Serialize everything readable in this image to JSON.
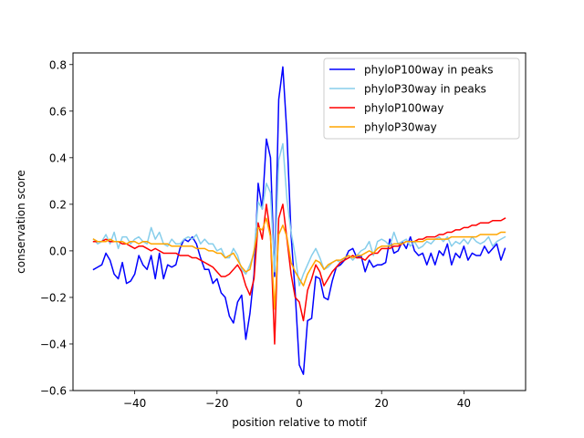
{
  "chart_data": {
    "type": "line",
    "title": "",
    "xlabel": "position relative to motif",
    "ylabel": "conservation score",
    "xlim": [
      -55.0,
      55.0
    ],
    "ylim": [
      -0.6,
      0.85
    ],
    "xticks": [
      -40,
      -20,
      0,
      20,
      40
    ],
    "xtick_labels": [
      "−40",
      "−20",
      "0",
      "20",
      "40"
    ],
    "yticks": [
      -0.6,
      -0.4,
      -0.2,
      0.0,
      0.2,
      0.4,
      0.6,
      0.8
    ],
    "ytick_labels": [
      "−0.6",
      "−0.4",
      "−0.2",
      "0.0",
      "0.2",
      "0.4",
      "0.6",
      "0.8"
    ],
    "grid": false,
    "legend_position": "top-right",
    "x": [
      -50,
      -49,
      -48,
      -47,
      -46,
      -45,
      -44,
      -43,
      -42,
      -41,
      -40,
      -39,
      -38,
      -37,
      -36,
      -35,
      -34,
      -33,
      -32,
      -31,
      -30,
      -29,
      -28,
      -27,
      -26,
      -25,
      -24,
      -23,
      -22,
      -21,
      -20,
      -19,
      -18,
      -17,
      -16,
      -15,
      -14,
      -13,
      -12,
      -11,
      -10,
      -9,
      -8,
      -7,
      -6,
      -5,
      -4,
      -3,
      -2,
      -1,
      0,
      1,
      2,
      3,
      4,
      5,
      6,
      7,
      8,
      9,
      10,
      11,
      12,
      13,
      14,
      15,
      16,
      17,
      18,
      19,
      20,
      21,
      22,
      23,
      24,
      25,
      26,
      27,
      28,
      29,
      30,
      31,
      32,
      33,
      34,
      35,
      36,
      37,
      38,
      39,
      40,
      41,
      42,
      43,
      44,
      45,
      46,
      47,
      48,
      49,
      50
    ],
    "series": [
      {
        "name": "phyloP100way in peaks",
        "color": "#0000ff",
        "values": [
          -0.08,
          -0.07,
          -0.06,
          -0.01,
          -0.04,
          -0.1,
          -0.12,
          -0.05,
          -0.14,
          -0.13,
          -0.1,
          -0.02,
          -0.06,
          -0.08,
          -0.02,
          -0.12,
          -0.01,
          -0.12,
          -0.06,
          -0.07,
          -0.06,
          0.01,
          0.05,
          0.04,
          0.06,
          0.03,
          -0.03,
          -0.08,
          -0.08,
          -0.14,
          -0.12,
          -0.18,
          -0.2,
          -0.28,
          -0.31,
          -0.22,
          -0.19,
          -0.38,
          -0.27,
          -0.1,
          0.29,
          0.18,
          0.48,
          0.4,
          -0.11,
          0.65,
          0.79,
          0.5,
          0.07,
          -0.18,
          -0.49,
          -0.53,
          -0.3,
          -0.29,
          -0.11,
          -0.12,
          -0.2,
          -0.21,
          -0.13,
          -0.07,
          -0.06,
          -0.04,
          0.0,
          0.01,
          -0.03,
          -0.02,
          -0.09,
          -0.04,
          -0.07,
          -0.06,
          -0.06,
          -0.05,
          0.05,
          -0.01,
          0.0,
          0.04,
          0.01,
          0.06,
          0.0,
          -0.02,
          -0.01,
          -0.06,
          -0.01,
          -0.06,
          0.0,
          -0.02,
          0.03,
          -0.06,
          -0.01,
          -0.03,
          0.02,
          -0.04,
          -0.01,
          -0.02,
          -0.02,
          0.02,
          -0.01,
          0.01,
          0.03,
          -0.04,
          0.01
        ]
      },
      {
        "name": "phyloP30way in peaks",
        "color": "#87ceeb",
        "values": [
          0.05,
          0.03,
          0.04,
          0.07,
          0.03,
          0.08,
          0.01,
          0.06,
          0.06,
          0.03,
          0.05,
          0.06,
          0.04,
          0.03,
          0.1,
          0.05,
          0.08,
          0.03,
          0.02,
          0.05,
          0.03,
          0.03,
          0.05,
          0.06,
          0.05,
          0.07,
          0.03,
          0.05,
          0.03,
          0.03,
          0.0,
          0.01,
          -0.03,
          -0.03,
          0.01,
          -0.02,
          -0.08,
          -0.1,
          -0.06,
          -0.01,
          0.21,
          0.18,
          0.29,
          0.25,
          -0.09,
          0.39,
          0.46,
          0.22,
          0.08,
          -0.02,
          -0.15,
          -0.1,
          -0.06,
          -0.02,
          0.01,
          -0.03,
          -0.08,
          -0.07,
          -0.05,
          -0.04,
          -0.05,
          -0.03,
          -0.02,
          -0.04,
          -0.02,
          0.0,
          0.01,
          0.04,
          -0.02,
          0.04,
          0.05,
          0.04,
          0.02,
          0.08,
          0.03,
          0.04,
          0.05,
          0.02,
          0.04,
          0.01,
          0.02,
          0.04,
          0.03,
          0.05,
          0.06,
          0.04,
          0.06,
          0.02,
          0.04,
          0.03,
          0.05,
          0.03,
          0.06,
          0.04,
          0.03,
          0.04,
          0.06,
          0.02,
          0.04,
          0.05,
          0.06
        ]
      },
      {
        "name": "phyloP100way",
        "color": "#ff0000",
        "values": [
          0.04,
          0.04,
          0.04,
          0.05,
          0.04,
          0.04,
          0.04,
          0.03,
          0.03,
          0.02,
          0.01,
          0.02,
          0.02,
          0.01,
          0.0,
          0.01,
          0.0,
          -0.01,
          -0.01,
          -0.01,
          -0.01,
          -0.02,
          -0.02,
          -0.02,
          -0.03,
          -0.03,
          -0.04,
          -0.05,
          -0.06,
          -0.07,
          -0.09,
          -0.11,
          -0.11,
          -0.1,
          -0.08,
          -0.06,
          -0.09,
          -0.15,
          -0.19,
          -0.12,
          0.12,
          0.05,
          0.2,
          0.07,
          -0.4,
          0.14,
          0.2,
          0.05,
          -0.1,
          -0.2,
          -0.22,
          -0.3,
          -0.17,
          -0.12,
          -0.06,
          -0.09,
          -0.15,
          -0.12,
          -0.09,
          -0.07,
          -0.05,
          -0.04,
          -0.03,
          -0.02,
          -0.03,
          -0.03,
          -0.04,
          -0.02,
          -0.01,
          -0.01,
          0.01,
          0.01,
          0.01,
          0.02,
          0.02,
          0.03,
          0.04,
          0.04,
          0.04,
          0.05,
          0.05,
          0.06,
          0.06,
          0.06,
          0.07,
          0.07,
          0.08,
          0.08,
          0.09,
          0.09,
          0.1,
          0.1,
          0.11,
          0.11,
          0.12,
          0.12,
          0.12,
          0.13,
          0.13,
          0.13,
          0.14
        ]
      },
      {
        "name": "phyloP30way",
        "color": "#ffa500",
        "values": [
          0.05,
          0.04,
          0.04,
          0.04,
          0.05,
          0.04,
          0.04,
          0.04,
          0.03,
          0.04,
          0.04,
          0.03,
          0.04,
          0.04,
          0.03,
          0.03,
          0.03,
          0.03,
          0.03,
          0.02,
          0.02,
          0.02,
          0.02,
          0.02,
          0.02,
          0.01,
          0.01,
          0.01,
          0.0,
          0.0,
          -0.01,
          -0.01,
          -0.03,
          -0.02,
          -0.01,
          -0.04,
          -0.07,
          -0.09,
          -0.08,
          0.0,
          0.1,
          0.09,
          0.14,
          0.06,
          -0.25,
          0.07,
          0.11,
          0.06,
          -0.05,
          -0.09,
          -0.12,
          -0.15,
          -0.1,
          -0.07,
          -0.04,
          -0.05,
          -0.08,
          -0.06,
          -0.05,
          -0.04,
          -0.04,
          -0.03,
          -0.02,
          -0.03,
          -0.02,
          -0.02,
          -0.01,
          0.0,
          -0.01,
          0.01,
          0.02,
          0.02,
          0.02,
          0.03,
          0.03,
          0.03,
          0.04,
          0.04,
          0.04,
          0.04,
          0.04,
          0.05,
          0.05,
          0.05,
          0.05,
          0.05,
          0.05,
          0.06,
          0.06,
          0.06,
          0.06,
          0.06,
          0.06,
          0.06,
          0.07,
          0.07,
          0.07,
          0.07,
          0.07,
          0.08,
          0.08
        ]
      }
    ]
  }
}
